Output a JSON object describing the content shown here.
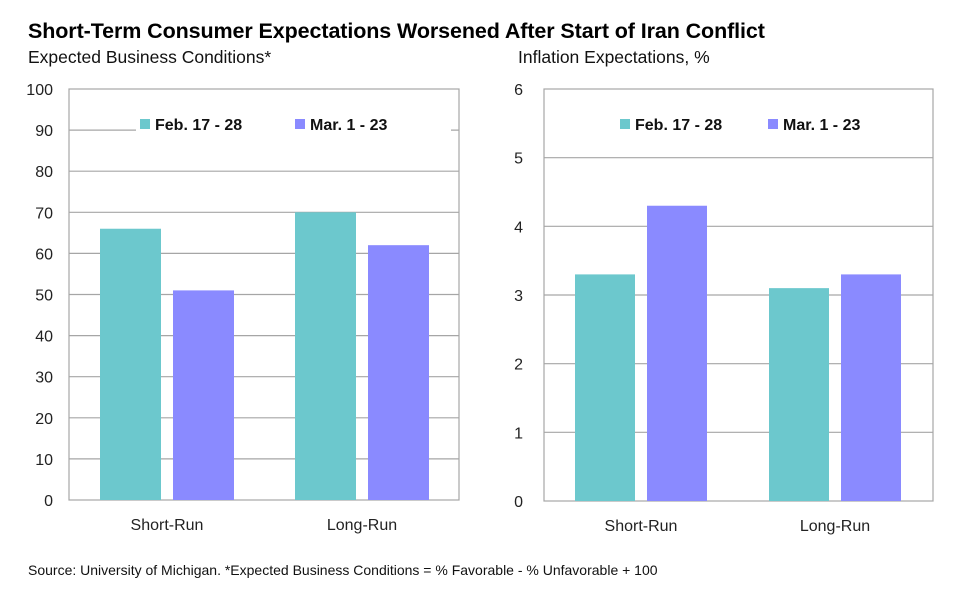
{
  "title": "Short-Term Consumer Expectations Worsened After Start of Iran Conflict",
  "footer": "Source: University of Michigan. *Expected Business Conditions = % Favorable - % Unfavorable + 100",
  "colors": {
    "feb": "#6cc8cd",
    "mar": "#8a8aff",
    "grid": "#a6a6a6"
  },
  "chart_data": [
    {
      "type": "bar",
      "title": "Expected Business Conditions*",
      "xlabel": "",
      "ylabel": "",
      "categories": [
        "Short-Run",
        "Long-Run"
      ],
      "series": [
        {
          "name": "Feb. 17 - 28",
          "values": [
            66,
            70
          ]
        },
        {
          "name": "Mar. 1 - 23",
          "values": [
            51,
            62
          ]
        }
      ],
      "ylim": [
        0,
        100
      ],
      "yticks": [
        0,
        10,
        20,
        30,
        40,
        50,
        60,
        70,
        80,
        90,
        100
      ],
      "grid": true,
      "legend": "top-center"
    },
    {
      "type": "bar",
      "title": "Inflation Expectations, %",
      "xlabel": "",
      "ylabel": "",
      "categories": [
        "Short-Run",
        "Long-Run"
      ],
      "series": [
        {
          "name": "Feb. 17 - 28",
          "values": [
            3.3,
            3.1
          ]
        },
        {
          "name": "Mar. 1 - 23",
          "values": [
            4.3,
            3.3
          ]
        }
      ],
      "ylim": [
        0,
        6
      ],
      "yticks": [
        0,
        1,
        2,
        3,
        4,
        5,
        6
      ],
      "grid": true,
      "legend": "top-center"
    }
  ]
}
